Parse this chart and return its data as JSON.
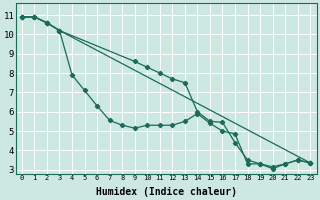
{
  "xlabel": "Humidex (Indice chaleur)",
  "bg_color": "#cce8e0",
  "grid_color": "#ffffff",
  "line_color": "#1a6b5a",
  "xlim": [
    -0.5,
    23.5
  ],
  "ylim": [
    2.8,
    11.6
  ],
  "xticks": [
    0,
    1,
    2,
    3,
    4,
    5,
    6,
    7,
    8,
    9,
    10,
    11,
    12,
    13,
    14,
    15,
    16,
    17,
    18,
    19,
    20,
    21,
    22,
    23
  ],
  "yticks": [
    3,
    4,
    5,
    6,
    7,
    8,
    9,
    10,
    11
  ],
  "line1_x": [
    0,
    1,
    2,
    3,
    4,
    5,
    6,
    7,
    8,
    9,
    10,
    11,
    12,
    13,
    14,
    15,
    16,
    17,
    18,
    19,
    20,
    21,
    22,
    23
  ],
  "line1_y": [
    10.9,
    10.9,
    10.6,
    10.2,
    7.9,
    7.1,
    6.3,
    5.55,
    5.3,
    5.15,
    5.3,
    5.3,
    5.3,
    5.5,
    5.9,
    5.4,
    5.0,
    4.85,
    3.3,
    3.3,
    3.05,
    3.3,
    3.5,
    3.35
  ],
  "line2_x": [
    0,
    1,
    2,
    3,
    23
  ],
  "line2_y": [
    10.9,
    10.9,
    10.6,
    10.2,
    3.35
  ],
  "line3_x": [
    0,
    1,
    2,
    3,
    9,
    10,
    11,
    12,
    13,
    14,
    15,
    16,
    17,
    18,
    19,
    20,
    21,
    22,
    23
  ],
  "line3_y": [
    10.9,
    10.9,
    10.6,
    10.2,
    8.6,
    8.3,
    8.0,
    7.7,
    7.5,
    6.0,
    5.5,
    5.45,
    4.4,
    3.5,
    3.3,
    3.15,
    3.3,
    3.5,
    3.35
  ],
  "xlabel_fontsize": 7,
  "tick_fontsize_x": 5.0,
  "tick_fontsize_y": 6.5
}
